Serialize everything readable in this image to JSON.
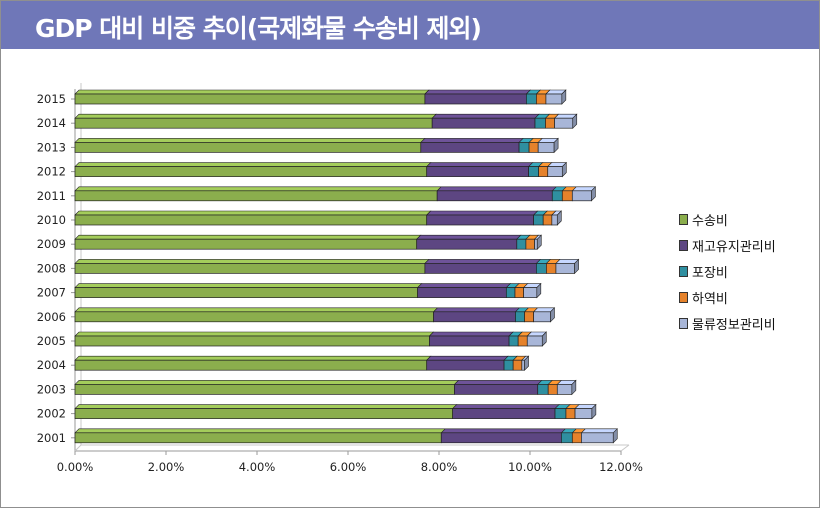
{
  "title": "GDP 대비 비중 추이(국제화물 수송비 제외)",
  "chart_data": {
    "type": "bar",
    "orientation": "horizontal",
    "stacked": true,
    "categories": [
      "2015",
      "2014",
      "2013",
      "2012",
      "2011",
      "2010",
      "2009",
      "2008",
      "2007",
      "2006",
      "2005",
      "2004",
      "2003",
      "2002",
      "2001"
    ],
    "series": [
      {
        "name": "수송비",
        "color": "#8bae4d",
        "values": [
          7.69,
          7.85,
          7.6,
          7.73,
          7.96,
          7.73,
          7.51,
          7.69,
          7.53,
          7.88,
          7.79,
          7.73,
          8.34,
          8.3,
          8.05
        ]
      },
      {
        "name": "재고유지관리비",
        "color": "#5d4682",
        "values": [
          2.23,
          2.26,
          2.16,
          2.24,
          2.53,
          2.35,
          2.2,
          2.45,
          1.95,
          1.8,
          1.75,
          1.7,
          1.83,
          2.25,
          2.64
        ]
      },
      {
        "name": "포장비",
        "color": "#2f8fa0",
        "values": [
          0.22,
          0.23,
          0.22,
          0.22,
          0.22,
          0.21,
          0.2,
          0.22,
          0.19,
          0.2,
          0.2,
          0.2,
          0.23,
          0.24,
          0.24
        ]
      },
      {
        "name": "하역비",
        "color": "#e5822b",
        "values": [
          0.21,
          0.2,
          0.2,
          0.2,
          0.22,
          0.19,
          0.19,
          0.21,
          0.19,
          0.2,
          0.2,
          0.19,
          0.2,
          0.2,
          0.2
        ]
      },
      {
        "name": "물류정보관리비",
        "color": "#a8b6d8",
        "values": [
          0.35,
          0.4,
          0.35,
          0.32,
          0.42,
          0.12,
          0.06,
          0.41,
          0.29,
          0.37,
          0.33,
          0.06,
          0.32,
          0.37,
          0.7
        ]
      }
    ],
    "x_ticks": [
      "0.00%",
      "2.00%",
      "4.00%",
      "6.00%",
      "8.00%",
      "10.00%",
      "12.00%"
    ],
    "xlim": [
      0,
      12
    ],
    "grid": false,
    "legend": "right"
  }
}
